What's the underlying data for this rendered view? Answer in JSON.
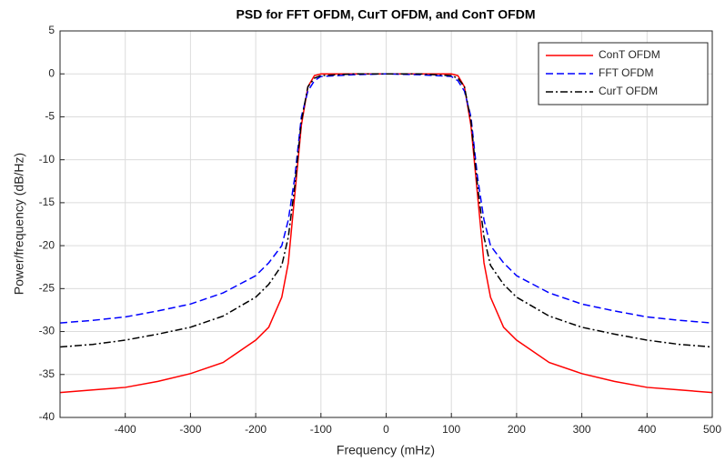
{
  "chart_data": {
    "type": "line",
    "title": "PSD for  FFT OFDM, CurT OFDM, and ConT OFDM",
    "x_label": "Frequency (mHz)",
    "y_label": "Power/frequency (dB/Hz)",
    "x": [
      -500,
      -450,
      -400,
      -350,
      -300,
      -250,
      -200,
      -180,
      -160,
      -150,
      -140,
      -130,
      -120,
      -110,
      -100,
      -50,
      0,
      50,
      100,
      110,
      120,
      130,
      140,
      150,
      160,
      180,
      200,
      250,
      300,
      350,
      400,
      450,
      500
    ],
    "series": [
      {
        "name": "ConT OFDM",
        "color": "#ff0000",
        "style": "solid",
        "values": [
          -37.1,
          -36.8,
          -36.5,
          -35.8,
          -34.9,
          -33.6,
          -31,
          -29.5,
          -26,
          -22,
          -14,
          -6,
          -1.5,
          -0.2,
          0,
          0,
          0,
          0,
          0,
          -0.2,
          -1.5,
          -6,
          -14,
          -22,
          -26,
          -29.5,
          -31,
          -33.6,
          -34.9,
          -35.8,
          -36.5,
          -36.8,
          -37.1
        ]
      },
      {
        "name": "FFT OFDM",
        "color": "#0000ff",
        "style": "dashed",
        "values": [
          -29,
          -28.7,
          -28.3,
          -27.6,
          -26.8,
          -25.5,
          -23.5,
          -22,
          -20,
          -17,
          -12,
          -5,
          -2,
          -0.8,
          -0.3,
          -0.1,
          0,
          -0.1,
          -0.3,
          -0.8,
          -2,
          -5,
          -12,
          -17,
          -20,
          -22,
          -23.5,
          -25.5,
          -26.8,
          -27.6,
          -28.3,
          -28.7,
          -29
        ]
      },
      {
        "name": "CurT OFDM",
        "color": "#000000",
        "style": "dashdot",
        "values": [
          -31.8,
          -31.5,
          -31,
          -30.3,
          -29.5,
          -28.2,
          -26,
          -24.5,
          -22.3,
          -19,
          -13,
          -5.5,
          -1.5,
          -0.5,
          -0.2,
          0,
          0,
          0,
          -0.2,
          -0.5,
          -1.5,
          -5.5,
          -13,
          -19,
          -22.3,
          -24.5,
          -26,
          -28.2,
          -29.5,
          -30.3,
          -31,
          -31.5,
          -31.8
        ]
      }
    ],
    "xlim": [
      -500,
      500
    ],
    "xticks": [
      -400,
      -300,
      -200,
      -100,
      0,
      100,
      200,
      300,
      400,
      500
    ],
    "ylim": [
      -40,
      5
    ],
    "yticks": [
      5,
      0,
      -5,
      -10,
      -15,
      -20,
      -25,
      -30,
      -35,
      -40
    ],
    "grid": true,
    "legend": "top-right"
  }
}
